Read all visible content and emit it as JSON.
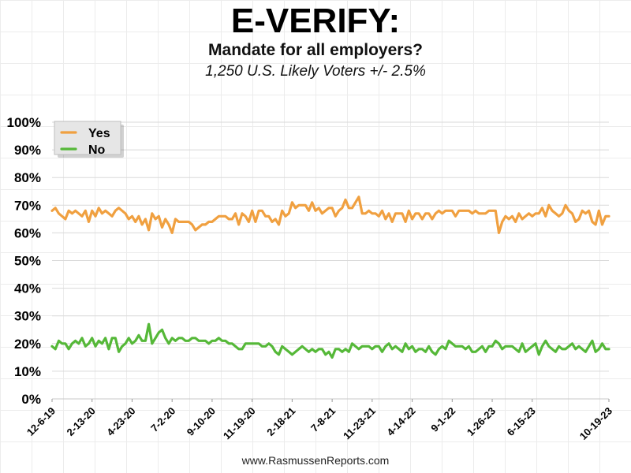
{
  "header": {
    "title": "E-VERIFY:",
    "subtitle": "Mandate for all employers?",
    "sample": "1,250 U.S. Likely Voters +/- 2.5%"
  },
  "footer": {
    "source": "www.RasmussenReports.com"
  },
  "chart_data": {
    "type": "line",
    "title": "E-VERIFY:",
    "subtitle": "Mandate for all employers?",
    "xlabel": "",
    "ylabel": "",
    "ylim": [
      0,
      100
    ],
    "y_ticks": [
      "0%",
      "10%",
      "20%",
      "30%",
      "40%",
      "50%",
      "60%",
      "70%",
      "80%",
      "90%",
      "100%"
    ],
    "x_tick_labels": [
      "12-6-19",
      "2-13-20",
      "4-23-20",
      "7-2-20",
      "9-10-20",
      "11-19-20",
      "2-18-21",
      "7-8-21",
      "11-23-21",
      "4-14-22",
      "9-1-22",
      "1-26-23",
      "6-15-23",
      "10-19-23"
    ],
    "grid": true,
    "legend_position": "top-left",
    "series": [
      {
        "name": "Yes",
        "color": "#f0a040",
        "values": [
          68,
          69,
          67,
          66,
          65,
          68,
          67,
          68,
          67,
          66,
          68,
          64,
          68,
          66,
          69,
          67,
          68,
          67,
          66,
          68,
          69,
          68,
          67,
          65,
          66,
          64,
          66,
          63,
          65,
          61,
          67,
          65,
          66,
          62,
          65,
          63,
          60,
          65,
          64,
          64,
          64,
          64,
          63,
          61,
          62,
          63,
          63,
          64,
          64,
          65,
          66,
          66,
          66,
          65,
          65,
          67,
          63,
          67,
          66,
          64,
          68,
          64,
          68,
          68,
          66,
          66,
          64,
          65,
          63,
          68,
          66,
          67,
          71,
          69,
          70,
          70,
          70,
          68,
          71,
          68,
          69,
          67,
          68,
          69,
          69,
          66,
          68,
          69,
          72,
          69,
          69,
          71,
          73,
          67,
          67,
          68,
          67,
          67,
          66,
          68,
          65,
          67,
          64,
          67,
          67,
          67,
          64,
          68,
          65,
          67,
          67,
          65,
          67,
          67,
          65,
          67,
          68,
          67,
          68,
          68,
          68,
          66,
          68,
          68,
          68,
          68,
          67,
          68,
          67,
          67,
          67,
          68,
          68,
          68,
          60,
          64,
          66,
          65,
          66,
          64,
          67,
          65,
          66,
          67,
          66,
          67,
          67,
          69,
          66,
          70,
          68,
          67,
          66,
          67,
          70,
          68,
          67,
          64,
          65,
          68,
          67,
          68,
          64,
          63,
          68,
          63,
          66,
          66
        ],
        "labels_x_index": [
          0,
          12,
          24,
          36,
          48,
          60,
          72,
          84,
          96,
          108,
          120,
          132,
          144,
          167
        ]
      },
      {
        "name": "No",
        "color": "#55b838",
        "values": [
          19,
          18,
          21,
          20,
          20,
          18,
          20,
          21,
          20,
          22,
          19,
          20,
          22,
          19,
          21,
          20,
          22,
          18,
          22,
          22,
          17,
          19,
          20,
          22,
          20,
          21,
          23,
          21,
          21,
          27,
          20,
          22,
          24,
          25,
          22,
          20,
          22,
          21,
          22,
          22,
          21,
          21,
          22,
          22,
          21,
          21,
          21,
          20,
          21,
          21,
          22,
          21,
          21,
          20,
          20,
          19,
          18,
          18,
          20,
          20,
          20,
          20,
          20,
          19,
          19,
          20,
          19,
          17,
          16,
          19,
          18,
          17,
          16,
          17,
          18,
          19,
          18,
          17,
          18,
          17,
          18,
          18,
          16,
          17,
          15,
          18,
          18,
          17,
          18,
          17,
          20,
          19,
          18,
          19,
          19,
          19,
          18,
          19,
          19,
          17,
          19,
          20,
          18,
          19,
          18,
          17,
          20,
          18,
          19,
          17,
          18,
          18,
          17,
          19,
          17,
          16,
          18,
          19,
          18,
          21,
          20,
          19,
          19,
          19,
          18,
          19,
          17,
          17,
          18,
          19,
          17,
          19,
          19,
          21,
          20,
          18,
          19,
          19,
          19,
          18,
          17,
          20,
          17,
          18,
          19,
          20,
          16,
          19,
          21,
          19,
          18,
          17,
          19,
          18,
          18,
          19,
          20,
          18,
          19,
          18,
          17,
          19,
          21,
          17,
          18,
          20,
          18,
          18
        ]
      }
    ]
  }
}
